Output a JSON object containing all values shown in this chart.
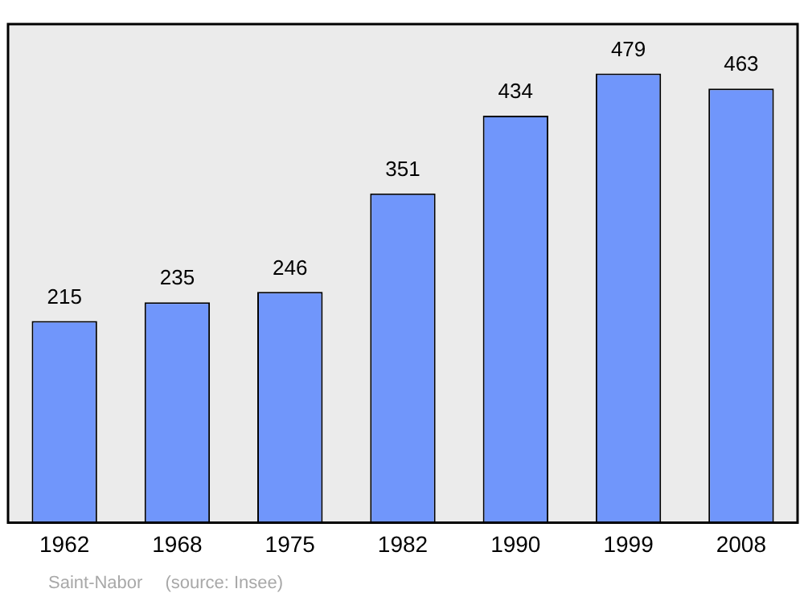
{
  "chart_data": {
    "type": "bar",
    "categories": [
      "1962",
      "1968",
      "1975",
      "1982",
      "1990",
      "1999",
      "2008"
    ],
    "values": [
      215,
      235,
      246,
      351,
      434,
      479,
      463
    ],
    "color": "#7096fb",
    "data_labels": true,
    "grid": false,
    "legend": false,
    "annotations": [
      "Saint-Nabor",
      "(source: Insee)"
    ]
  }
}
